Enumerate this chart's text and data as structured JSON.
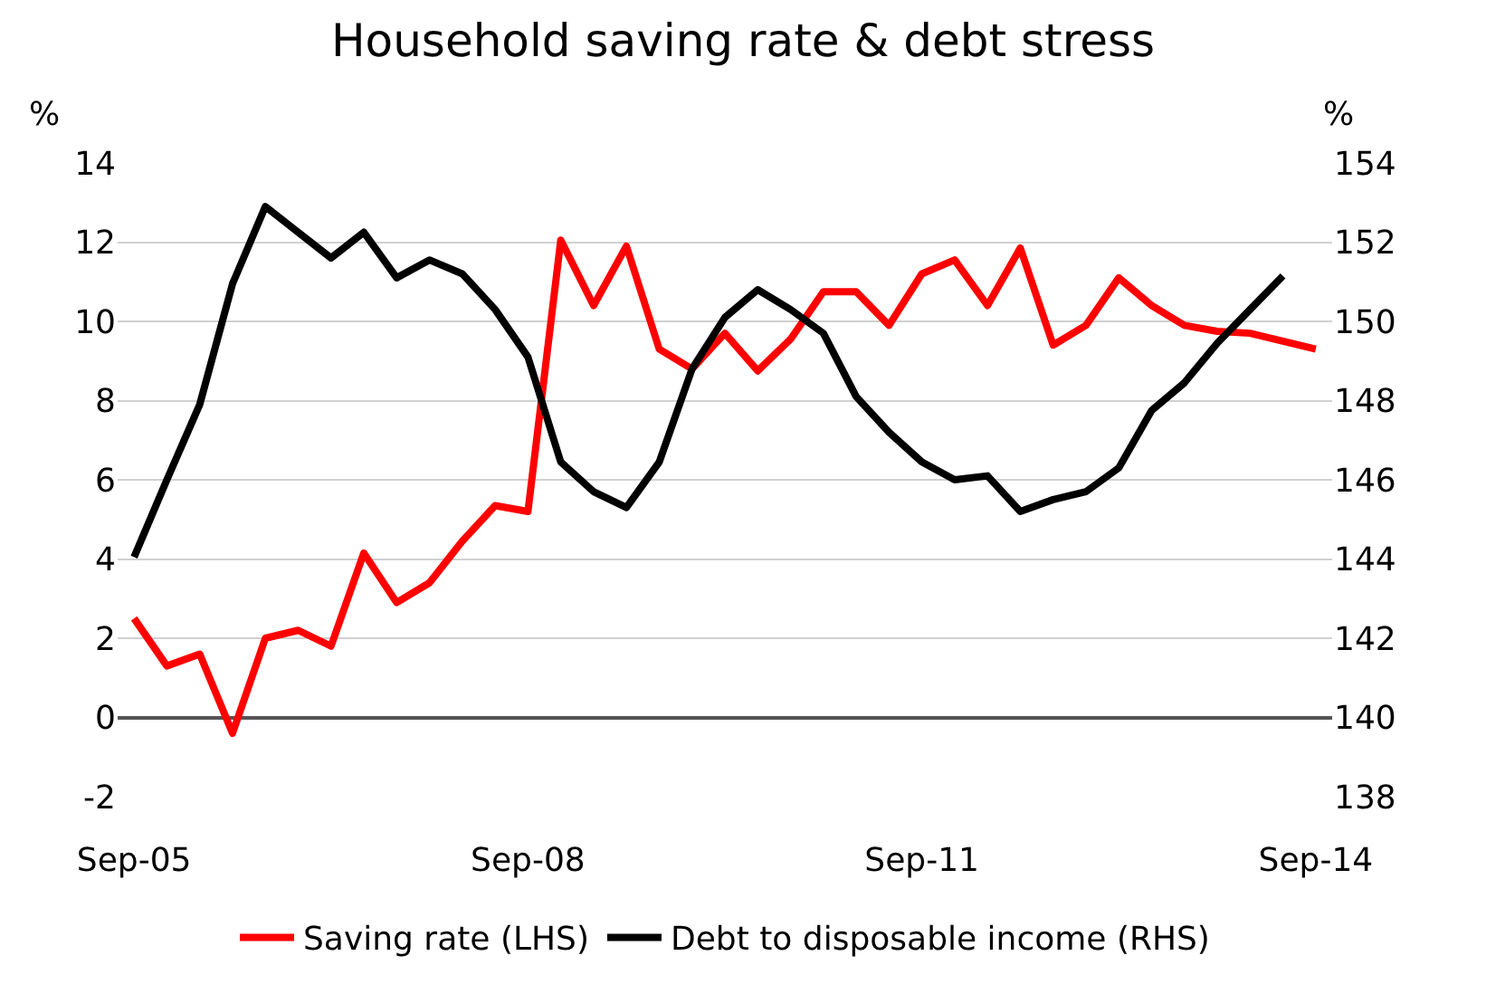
{
  "chart_data": {
    "type": "line",
    "title": "Household saving rate & debt stress",
    "categories": [
      "Sep-05",
      null,
      null,
      null,
      null,
      null,
      null,
      null,
      null,
      null,
      null,
      null,
      "Sep-08",
      null,
      null,
      null,
      null,
      null,
      null,
      null,
      null,
      null,
      null,
      null,
      "Sep-11",
      null,
      null,
      null,
      null,
      null,
      null,
      null,
      null,
      null,
      null,
      null,
      "Sep-14"
    ],
    "series": [
      {
        "name": "Saving rate (LHS)",
        "color": "#ff0000",
        "values": [
          2.5,
          1.3,
          1.6,
          -0.4,
          2.0,
          2.2,
          1.8,
          4.15,
          2.9,
          3.4,
          4.45,
          5.35,
          5.2,
          12.05,
          10.4,
          11.9,
          9.3,
          8.8,
          9.7,
          8.75,
          9.55,
          10.75,
          10.75,
          9.9,
          11.2,
          11.55,
          10.4,
          11.85,
          9.4,
          9.9,
          11.1,
          10.4,
          9.9,
          9.75,
          9.7,
          9.5,
          9.3
        ]
      },
      {
        "name": "Debt to disposable income (RHS)",
        "color": "#000000",
        "axis": "y2",
        "values": [
          144.05,
          146.0,
          147.9,
          150.95,
          152.9,
          152.25,
          151.6,
          152.25,
          151.1,
          151.55,
          151.2,
          150.3,
          149.1,
          146.45,
          145.7,
          145.3,
          146.45,
          148.8,
          150.1,
          150.8,
          150.3,
          149.7,
          148.1,
          147.2,
          146.45,
          146.0,
          146.1,
          145.2,
          145.5,
          145.7,
          146.3,
          147.75,
          148.45,
          149.45,
          150.3,
          151.15,
          null
        ]
      }
    ],
    "ylim": [
      -2,
      14
    ],
    "yticks": [
      -2,
      0,
      2,
      4,
      6,
      8,
      10,
      12,
      14
    ],
    "y2lim": [
      138,
      154
    ],
    "y2ticks": [
      138,
      140,
      142,
      144,
      146,
      148,
      150,
      152,
      154
    ],
    "ylabel": "%",
    "y2label": "%",
    "grid": "y",
    "legend": "bottom",
    "marker": "none",
    "line_style": "solid"
  }
}
